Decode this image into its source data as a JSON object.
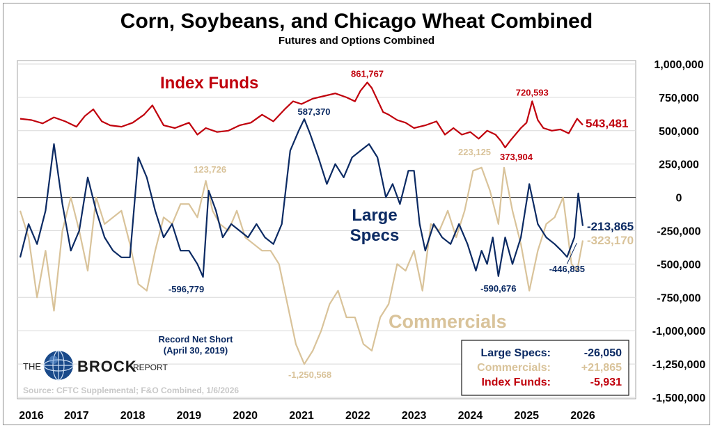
{
  "chart_data": {
    "type": "line",
    "title": "Corn, Soybeans, and Chicago Wheat Combined",
    "subtitle": "Futures and Options Combined",
    "x_ticks": [
      "2016",
      "2017",
      "2018",
      "2019",
      "2020",
      "2021",
      "2022",
      "2023",
      "2024",
      "2025",
      "2026"
    ],
    "y_ticks": [
      "1,000,000",
      "750,000",
      "500,000",
      "250,000",
      "0",
      "-250,000",
      "-500,000",
      "-750,000",
      "-1,000,000",
      "-1,250,000",
      "-1,500,000"
    ],
    "ylim": [
      -1500000,
      1000000
    ],
    "xlim": [
      2016.0,
      2026.0
    ],
    "grid": true,
    "series": [
      {
        "name": "Index Funds",
        "color": "#c0000c",
        "x": [
          2016.0,
          2016.2,
          2016.4,
          2016.6,
          2016.8,
          2017.0,
          2017.15,
          2017.3,
          2017.45,
          2017.6,
          2017.8,
          2018.0,
          2018.2,
          2018.35,
          2018.55,
          2018.75,
          2019.0,
          2019.15,
          2019.3,
          2019.5,
          2019.7,
          2019.9,
          2020.1,
          2020.3,
          2020.5,
          2020.7,
          2020.85,
          2021.0,
          2021.2,
          2021.4,
          2021.6,
          2021.8,
          2021.95,
          2022.05,
          2022.17,
          2022.25,
          2022.35,
          2022.45,
          2022.55,
          2022.7,
          2022.85,
          2023.0,
          2023.2,
          2023.4,
          2023.55,
          2023.7,
          2023.85,
          2024.0,
          2024.15,
          2024.3,
          2024.45,
          2024.55,
          2024.62,
          2024.72,
          2024.82,
          2024.9,
          2025.0,
          2025.1,
          2025.2,
          2025.3,
          2025.45,
          2025.6,
          2025.75,
          2025.9,
          2026.0
        ],
        "values": [
          590000,
          580000,
          555000,
          600000,
          570000,
          530000,
          610000,
          660000,
          570000,
          540000,
          530000,
          560000,
          620000,
          690000,
          540000,
          520000,
          560000,
          470000,
          520000,
          490000,
          500000,
          540000,
          560000,
          620000,
          570000,
          660000,
          720000,
          700000,
          740000,
          760000,
          780000,
          750000,
          720000,
          800000,
          861767,
          820000,
          730000,
          640000,
          620000,
          580000,
          560000,
          520000,
          540000,
          570000,
          470000,
          520000,
          470000,
          490000,
          440000,
          500000,
          470000,
          420000,
          373904,
          430000,
          480000,
          520000,
          560000,
          720593,
          580000,
          520000,
          500000,
          510000,
          480000,
          590000,
          543481
        ]
      },
      {
        "name": "Large Specs",
        "color": "#0b2a63",
        "x": [
          2016.0,
          2016.15,
          2016.3,
          2016.45,
          2016.6,
          2016.75,
          2016.9,
          2017.05,
          2017.2,
          2017.35,
          2017.5,
          2017.65,
          2017.8,
          2017.95,
          2018.1,
          2018.25,
          2018.4,
          2018.55,
          2018.7,
          2018.85,
          2019.0,
          2019.15,
          2019.25,
          2019.35,
          2019.48,
          2019.6,
          2019.75,
          2019.9,
          2020.05,
          2020.2,
          2020.35,
          2020.5,
          2020.65,
          2020.8,
          2020.95,
          2021.05,
          2021.15,
          2021.3,
          2021.45,
          2021.6,
          2021.75,
          2021.9,
          2022.05,
          2022.2,
          2022.35,
          2022.5,
          2022.62,
          2022.75,
          2022.9,
          2023.0,
          2023.1,
          2023.2,
          2023.35,
          2023.5,
          2023.65,
          2023.8,
          2023.95,
          2024.1,
          2024.2,
          2024.3,
          2024.4,
          2024.5,
          2024.62,
          2024.75,
          2024.9,
          2025.05,
          2025.2,
          2025.35,
          2025.5,
          2025.62,
          2025.72,
          2025.85,
          2025.92,
          2026.0
        ],
        "values": [
          -450000,
          -200000,
          -350000,
          -100000,
          400000,
          -50000,
          -400000,
          -250000,
          150000,
          -100000,
          -300000,
          -400000,
          -450000,
          -450000,
          300000,
          150000,
          -100000,
          -300000,
          -200000,
          -400000,
          -400000,
          -500000,
          -596779,
          50000,
          -100000,
          -300000,
          -200000,
          -250000,
          -300000,
          -200000,
          -300000,
          -350000,
          -200000,
          350000,
          500000,
          587370,
          480000,
          300000,
          100000,
          250000,
          150000,
          300000,
          350000,
          400000,
          300000,
          0,
          100000,
          -50000,
          200000,
          200000,
          -200000,
          -400000,
          -200000,
          -300000,
          -350000,
          -200000,
          -350000,
          -550000,
          -400000,
          -500000,
          -300000,
          -590676,
          -300000,
          -500000,
          -300000,
          100000,
          -200000,
          -300000,
          -350000,
          -400000,
          -446835,
          -300000,
          30000,
          -213865
        ]
      },
      {
        "name": "Commercials",
        "color": "#d9c39a",
        "x": [
          2016.0,
          2016.15,
          2016.3,
          2016.45,
          2016.6,
          2016.75,
          2016.9,
          2017.05,
          2017.2,
          2017.35,
          2017.5,
          2017.65,
          2017.8,
          2017.95,
          2018.1,
          2018.25,
          2018.4,
          2018.55,
          2018.7,
          2018.85,
          2019.0,
          2019.15,
          2019.3,
          2019.42,
          2019.55,
          2019.7,
          2019.85,
          2020.0,
          2020.15,
          2020.3,
          2020.45,
          2020.6,
          2020.75,
          2020.9,
          2021.05,
          2021.2,
          2021.35,
          2021.5,
          2021.65,
          2021.8,
          2021.95,
          2022.1,
          2022.25,
          2022.4,
          2022.55,
          2022.7,
          2022.85,
          2023.0,
          2023.15,
          2023.3,
          2023.45,
          2023.6,
          2023.75,
          2023.9,
          2024.05,
          2024.2,
          2024.35,
          2024.5,
          2024.6,
          2024.75,
          2024.9,
          2025.05,
          2025.2,
          2025.35,
          2025.5,
          2025.65,
          2025.8,
          2025.9,
          2026.0
        ],
        "values": [
          -100000,
          -300000,
          -750000,
          -400000,
          -850000,
          -250000,
          0,
          -250000,
          -550000,
          0,
          -200000,
          -150000,
          -100000,
          -350000,
          -650000,
          -700000,
          -400000,
          -150000,
          -200000,
          -50000,
          -50000,
          -150000,
          123726,
          -100000,
          -200000,
          -250000,
          -100000,
          -300000,
          -350000,
          -400000,
          -400000,
          -500000,
          -800000,
          -1100000,
          -1250568,
          -1150000,
          -1000000,
          -800000,
          -700000,
          -900000,
          -900000,
          -1100000,
          -1150000,
          -900000,
          -800000,
          -500000,
          -550000,
          -400000,
          -700000,
          -200000,
          -250000,
          -100000,
          -300000,
          -100000,
          200000,
          223125,
          50000,
          -200000,
          223125,
          -100000,
          -350000,
          -700000,
          -400000,
          -200000,
          -150000,
          0,
          -500000,
          -550000,
          -323170
        ]
      }
    ],
    "annotations": [
      {
        "text": "861,767",
        "series": "Index Funds",
        "x": 2022.17,
        "y": 861767
      },
      {
        "text": "720,593",
        "series": "Index Funds",
        "x": 2025.1,
        "y": 720593
      },
      {
        "text": "373,904",
        "series": "Index Funds",
        "x": 2024.62,
        "y": 373904
      },
      {
        "text": "587,370",
        "series": "Large Specs",
        "x": 2021.05,
        "y": 587370
      },
      {
        "text": "-596,779",
        "series": "Large Specs",
        "x": 2019.25,
        "y": -596779
      },
      {
        "text": "-590,676",
        "series": "Large Specs",
        "x": 2024.5,
        "y": -590676
      },
      {
        "text": "-446,835",
        "series": "Large Specs",
        "x": 2025.72,
        "y": -446835
      },
      {
        "text": "123,726",
        "series": "Commercials",
        "x": 2019.3,
        "y": 123726
      },
      {
        "text": "223,125",
        "series": "Commercials",
        "x": 2024.2,
        "y": 223125
      },
      {
        "text": "-1,250,568",
        "series": "Commercials",
        "x": 2021.05,
        "y": -1250568
      }
    ],
    "end_labels": [
      {
        "text": "543,481",
        "series": "Index Funds"
      },
      {
        "text": "-213,865",
        "series": "Large Specs"
      },
      {
        "text": "-323,170",
        "series": "Commercials"
      }
    ]
  },
  "series_labels": {
    "index_funds": "Index Funds",
    "large_specs_line1": "Large",
    "large_specs_line2": "Specs",
    "commercials": "Commercials"
  },
  "record_note": {
    "line1": "Record Net Short",
    "line2": "(April 30, 2019)"
  },
  "logo": {
    "the": "THE",
    "brock": "BROCK",
    "report": "REPORT"
  },
  "source": "Source: CFTC Supplemental; F&O Combined, 1/6/2026",
  "legend": {
    "rows": [
      {
        "label": "Large Specs:",
        "value": "-26,050",
        "color": "#0b2a63"
      },
      {
        "label": "Commercials:",
        "value": "+21,865",
        "color": "#d9c39a"
      },
      {
        "label": "Index Funds:",
        "value": "-5,931",
        "color": "#c0000c"
      }
    ]
  }
}
